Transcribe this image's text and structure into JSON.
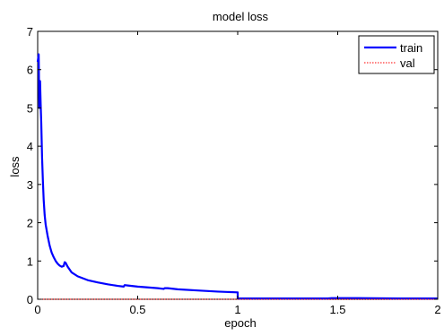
{
  "chart_data": {
    "type": "line",
    "title": "model loss",
    "xlabel": "epoch",
    "ylabel": "loss",
    "xlim": [
      0,
      2
    ],
    "ylim": [
      0,
      7
    ],
    "x_ticks": [
      0,
      0.5,
      1,
      1.5,
      2
    ],
    "x_tick_labels": [
      "0",
      "0.5",
      "1",
      "1.5",
      "2"
    ],
    "y_ticks": [
      0,
      1,
      2,
      3,
      4,
      5,
      6,
      7
    ],
    "y_tick_labels": [
      "0",
      "1",
      "2",
      "3",
      "4",
      "5",
      "6",
      "7"
    ],
    "grid": false,
    "legend": {
      "position": "top-right"
    },
    "series": [
      {
        "name": "train",
        "color": "#0000ff",
        "style": "solid",
        "x": [
          0.0,
          0.005,
          0.008,
          0.012,
          0.015,
          0.018,
          0.022,
          0.026,
          0.03,
          0.035,
          0.04,
          0.05,
          0.06,
          0.07,
          0.08,
          0.09,
          0.1,
          0.11,
          0.12,
          0.13,
          0.135,
          0.14,
          0.15,
          0.17,
          0.2,
          0.25,
          0.3,
          0.35,
          0.4,
          0.43,
          0.435,
          0.45,
          0.5,
          0.55,
          0.6,
          0.63,
          0.635,
          0.65,
          0.7,
          0.8,
          0.9,
          1.0,
          1.0,
          1.2,
          1.45,
          1.47,
          1.6,
          1.8,
          2.0
        ],
        "y": [
          6.2,
          6.4,
          5.0,
          5.7,
          5.1,
          4.6,
          3.7,
          3.1,
          2.6,
          2.2,
          1.95,
          1.65,
          1.4,
          1.22,
          1.1,
          1.0,
          0.93,
          0.88,
          0.85,
          0.87,
          0.97,
          0.95,
          0.85,
          0.7,
          0.6,
          0.5,
          0.44,
          0.39,
          0.35,
          0.33,
          0.37,
          0.36,
          0.33,
          0.31,
          0.29,
          0.27,
          0.29,
          0.29,
          0.26,
          0.23,
          0.2,
          0.18,
          0.02,
          0.02,
          0.02,
          0.03,
          0.03,
          0.02,
          0.02
        ]
      },
      {
        "name": "val",
        "color": "#ff0000",
        "style": "dotted",
        "x": [
          0,
          2
        ],
        "y": [
          0.0,
          0.0
        ]
      }
    ]
  }
}
